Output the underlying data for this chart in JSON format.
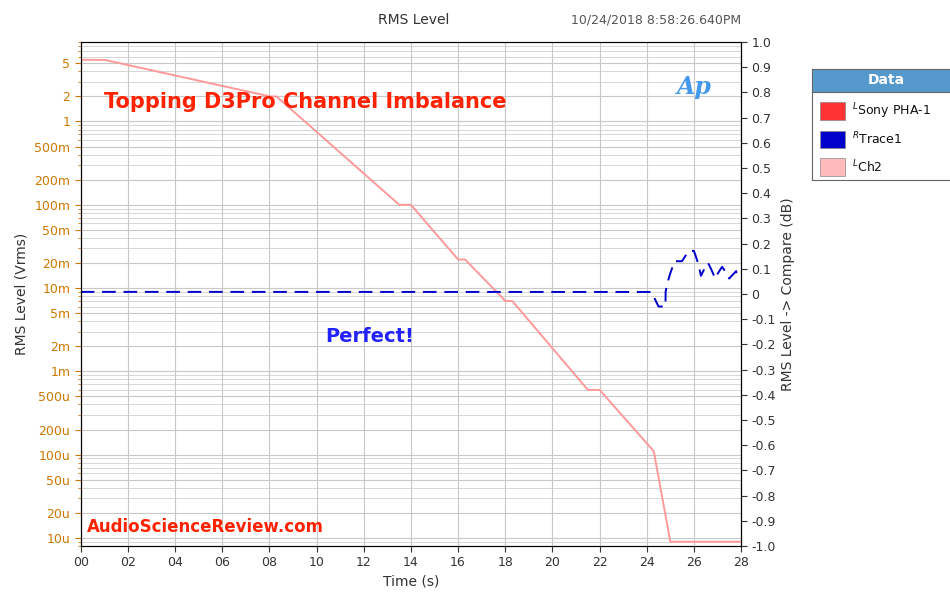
{
  "title_top": "RMS Level",
  "timestamp": "10/24/2018 8:58:26.640PM",
  "main_title": "Topping D3Pro Channel Imbalance",
  "annotation": "Perfect!",
  "watermark": "AudioScienceReview.com",
  "xlabel": "Time (s)",
  "ylabel_left": "RMS Level (Vrms)",
  "ylabel_right": "RMS Level -> Compare (dB)",
  "bg_color": "#ffffff",
  "grid_color": "#c8c8c8",
  "main_title_color": "#ff2200",
  "annotation_color": "#2222ff",
  "watermark_color": "#ff2200",
  "timestamp_color": "#555555",
  "left_tick_color": "#cc7700",
  "ytick_labels_left": [
    "10u",
    "20u",
    "50u",
    "100u",
    "200u",
    "500u",
    "1m",
    "2m",
    "5m",
    "10m",
    "20m",
    "50m",
    "100m",
    "200m",
    "500m",
    "1",
    "2",
    "5"
  ],
  "ytick_values_left": [
    1e-05,
    2e-05,
    5e-05,
    0.0001,
    0.0002,
    0.0005,
    0.001,
    0.002,
    0.005,
    0.01,
    0.02,
    0.05,
    0.1,
    0.2,
    0.5,
    1.0,
    2.0,
    5.0
  ],
  "ytick_labels_right": [
    "-1.0",
    "-0.9",
    "-0.8",
    "-0.7",
    "-0.6",
    "-0.5",
    "-0.4",
    "-0.3",
    "-0.2",
    "-0.1",
    "0",
    "0.1",
    "0.2",
    "0.3",
    "0.4",
    "0.5",
    "0.6",
    "0.7",
    "0.8",
    "0.9",
    "1.0"
  ],
  "ytick_values_right": [
    -1.0,
    -0.9,
    -0.8,
    -0.7,
    -0.6,
    -0.5,
    -0.4,
    -0.3,
    -0.2,
    -0.1,
    0.0,
    0.1,
    0.2,
    0.3,
    0.4,
    0.5,
    0.6,
    0.7,
    0.8,
    0.9,
    1.0
  ],
  "xmin": 0,
  "xmax": 28,
  "legend_title": "Data",
  "legend_header_color": "#5599cc",
  "legend_entries": [
    {
      "label": "Sony PHA-1",
      "color": "#ff3333",
      "channel": "L",
      "linestyle": "solid"
    },
    {
      "label": "Trace1",
      "color": "#0000cc",
      "channel": "R",
      "linestyle": "dashed"
    },
    {
      "label": "Ch2",
      "color": "#ffbbbb",
      "channel": "L",
      "linestyle": "solid"
    }
  ]
}
